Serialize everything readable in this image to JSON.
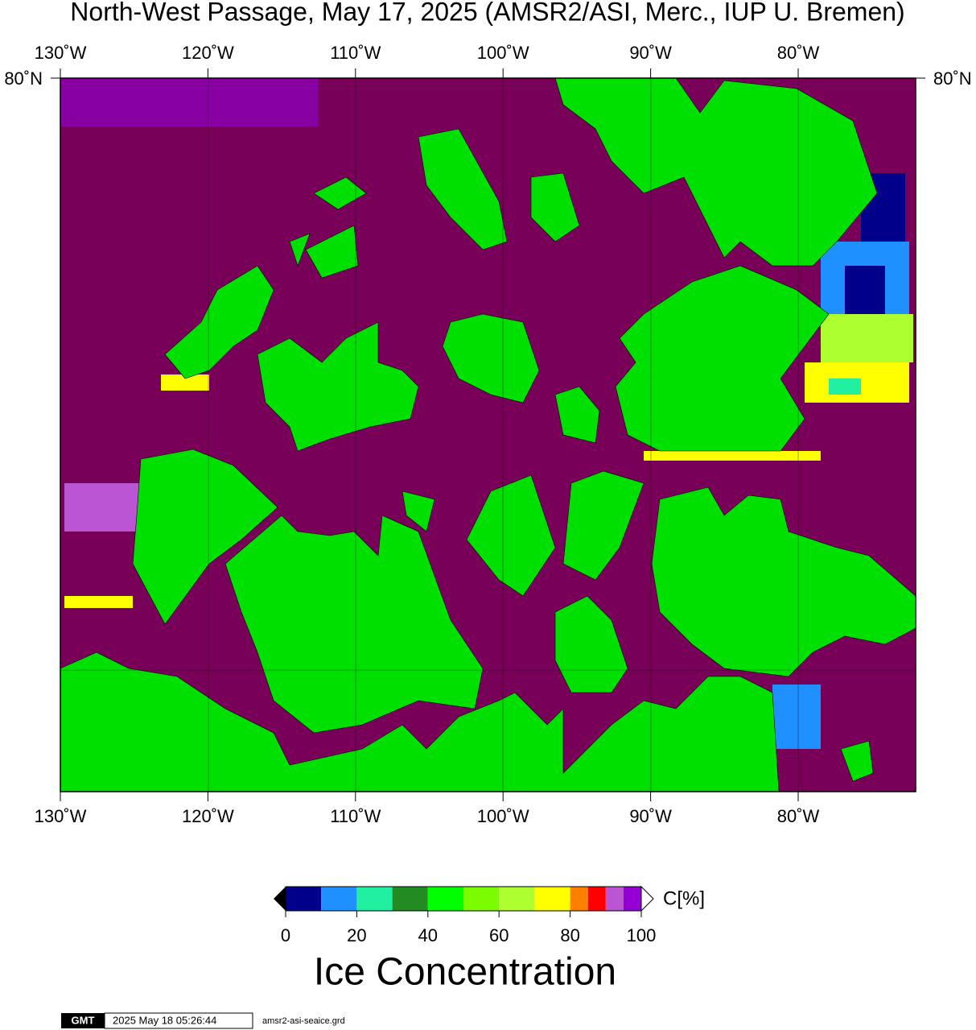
{
  "title": "North-West Passage, May 17, 2025 (AMSR2/ASI, Merc., IUP U. Bremen)",
  "map": {
    "lon_labels": [
      "130˚W",
      "120˚W",
      "110˚W",
      "100˚W",
      "90˚W",
      "80˚W"
    ],
    "lat_label": "80˚N"
  },
  "colorbar": {
    "label": "C[%]",
    "title": "Ice Concentration",
    "bounds": [
      0,
      10,
      20,
      30,
      40,
      50,
      60,
      70,
      80,
      85,
      90,
      95,
      100
    ],
    "colors": [
      "#00008b",
      "#1e90ff",
      "#20f0a0",
      "#228b22",
      "#00ff00",
      "#7cfc00",
      "#adff2f",
      "#ffff00",
      "#ff8000",
      "#ff0000",
      "#ba55d3",
      "#9400d3"
    ],
    "ticks": [
      0,
      20,
      40,
      60,
      80,
      100
    ]
  },
  "footer": {
    "logo": "GMT",
    "timestamp": "2025 May 18 05:26:44",
    "file": "amsr2-asi-seaice.grd"
  }
}
